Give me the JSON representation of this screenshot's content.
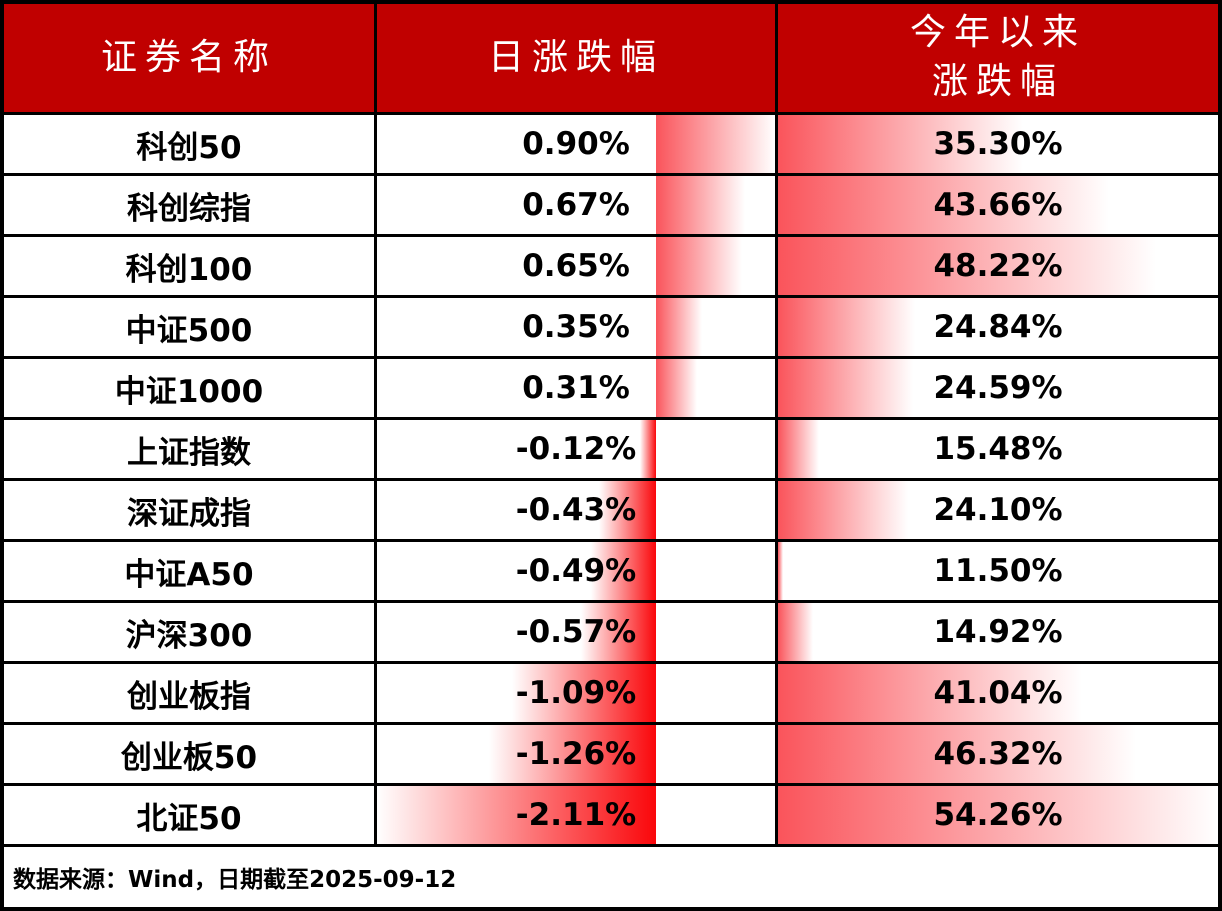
{
  "header": {
    "security_name": "证券名称",
    "daily_change": "日涨跌幅",
    "ytd_change_line1": "今年以来",
    "ytd_change_line2": "涨跌幅"
  },
  "footer": {
    "source_note": "数据来源：Wind，日期截至2025-09-12"
  },
  "colors": {
    "header_bg": "#C00000",
    "header_text": "#FFFFFF",
    "bar_positive": "#FA545B",
    "bar_negative": "#FA070B",
    "border": "#000000",
    "text": "#000000"
  },
  "chart_data": {
    "type": "table",
    "title": "",
    "columns": [
      "证券名称",
      "日涨跌幅",
      "今年以来涨跌幅"
    ],
    "rows": [
      {
        "name": "科创50",
        "daily_change_pct": 0.9,
        "daily_change_label": "0.90%",
        "ytd_change_pct": 35.3,
        "ytd_change_label": "35.30%"
      },
      {
        "name": "科创综指",
        "daily_change_pct": 0.67,
        "daily_change_label": "0.67%",
        "ytd_change_pct": 43.66,
        "ytd_change_label": "43.66%"
      },
      {
        "name": "科创100",
        "daily_change_pct": 0.65,
        "daily_change_label": "0.65%",
        "ytd_change_pct": 48.22,
        "ytd_change_label": "48.22%"
      },
      {
        "name": "中证500",
        "daily_change_pct": 0.35,
        "daily_change_label": "0.35%",
        "ytd_change_pct": 24.84,
        "ytd_change_label": "24.84%"
      },
      {
        "name": "中证1000",
        "daily_change_pct": 0.31,
        "daily_change_label": "0.31%",
        "ytd_change_pct": 24.59,
        "ytd_change_label": "24.59%"
      },
      {
        "name": "上证指数",
        "daily_change_pct": -0.12,
        "daily_change_label": "-0.12%",
        "ytd_change_pct": 15.48,
        "ytd_change_label": "15.48%"
      },
      {
        "name": "深证成指",
        "daily_change_pct": -0.43,
        "daily_change_label": "-0.43%",
        "ytd_change_pct": 24.1,
        "ytd_change_label": "24.10%"
      },
      {
        "name": "中证A50",
        "daily_change_pct": -0.49,
        "daily_change_label": "-0.49%",
        "ytd_change_pct": 11.5,
        "ytd_change_label": "11.50%"
      },
      {
        "name": "沪深300",
        "daily_change_pct": -0.57,
        "daily_change_label": "-0.57%",
        "ytd_change_pct": 14.92,
        "ytd_change_label": "14.92%"
      },
      {
        "name": "创业板指",
        "daily_change_pct": -1.09,
        "daily_change_label": "-1.09%",
        "ytd_change_pct": 41.04,
        "ytd_change_label": "41.04%"
      },
      {
        "name": "创业板50",
        "daily_change_pct": -1.26,
        "daily_change_label": "-1.26%",
        "ytd_change_pct": 46.32,
        "ytd_change_label": "46.32%"
      },
      {
        "name": "北证50",
        "daily_change_pct": -2.11,
        "daily_change_label": "-2.11%",
        "ytd_change_pct": 54.26,
        "ytd_change_label": "54.26%"
      }
    ],
    "bar_axis": {
      "daily": {
        "min": -2.11,
        "max": 0.9
      },
      "ytd": {
        "min": 11.5,
        "max": 54.26
      }
    },
    "legend_position": "none",
    "grid": "solid-black-cell-borders",
    "source": "数据来源：Wind，日期截至2025-09-12"
  }
}
